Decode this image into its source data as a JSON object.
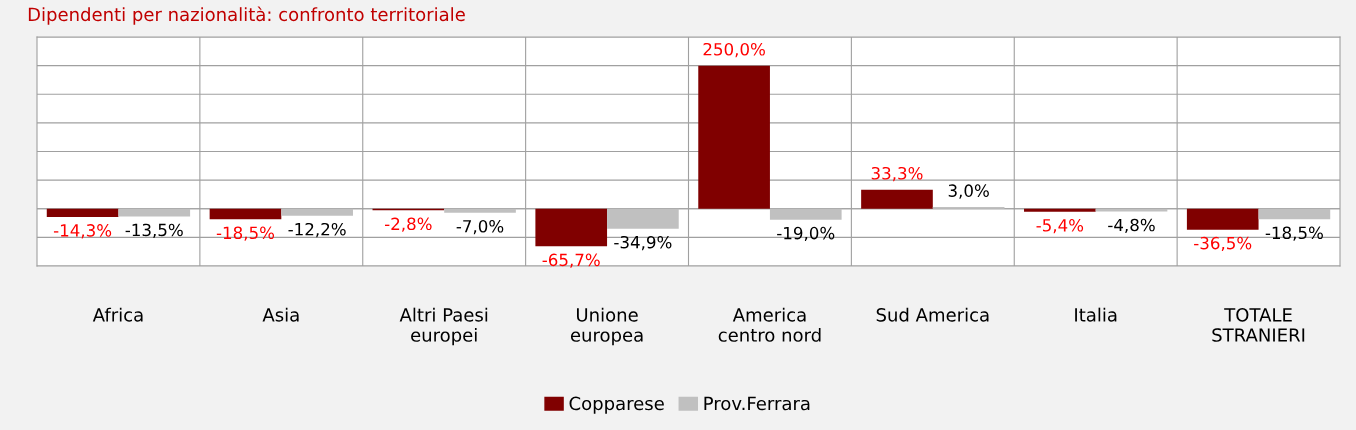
{
  "chart_data": {
    "type": "bar",
    "title": "Dipendenti per nazionalità: confronto territoriale",
    "categories": [
      "Africa",
      "Asia",
      "Altri Paesi\neuropei",
      "Unione\neuropea",
      "America\ncentro nord",
      "Sud America",
      "Italia",
      "TOTALE\nSTRANIERI"
    ],
    "series": [
      {
        "name": "Copparese",
        "color": "#800000",
        "values": [
          -14.3,
          -18.5,
          -2.8,
          -65.7,
          250.0,
          33.3,
          -5.4,
          -36.5
        ],
        "value_labels": [
          "-14,3%",
          "-18,5%",
          "-2,8%",
          "-65,7%",
          "250,0%",
          "33,3%",
          "-5,4%",
          "-36,5%"
        ]
      },
      {
        "name": "Prov.Ferrara",
        "color": "#c0c0c0",
        "values": [
          -13.5,
          -12.2,
          -7.0,
          -34.9,
          -19.0,
          3.0,
          -4.8,
          -18.5
        ],
        "value_labels": [
          "-13,5%",
          "-12,2%",
          "-7,0%",
          "-34,9%",
          "-19,0%",
          "3,0%",
          "-4,8%",
          "-18,5%"
        ]
      }
    ],
    "ylim": [
      -100,
      300
    ],
    "yticks": [
      {
        "value": -100,
        "label": null
      },
      {
        "value": -50,
        "label": null
      },
      {
        "value": 0,
        "label": null
      },
      {
        "value": 50,
        "label": null
      },
      {
        "value": 100,
        "label": null
      },
      {
        "value": 150,
        "label": null
      },
      {
        "value": 200,
        "label": null
      },
      {
        "value": 250,
        "label": null
      },
      {
        "value": 300,
        "label": null
      }
    ],
    "grid": true,
    "legend": "bottom",
    "tick_labels": "x"
  }
}
